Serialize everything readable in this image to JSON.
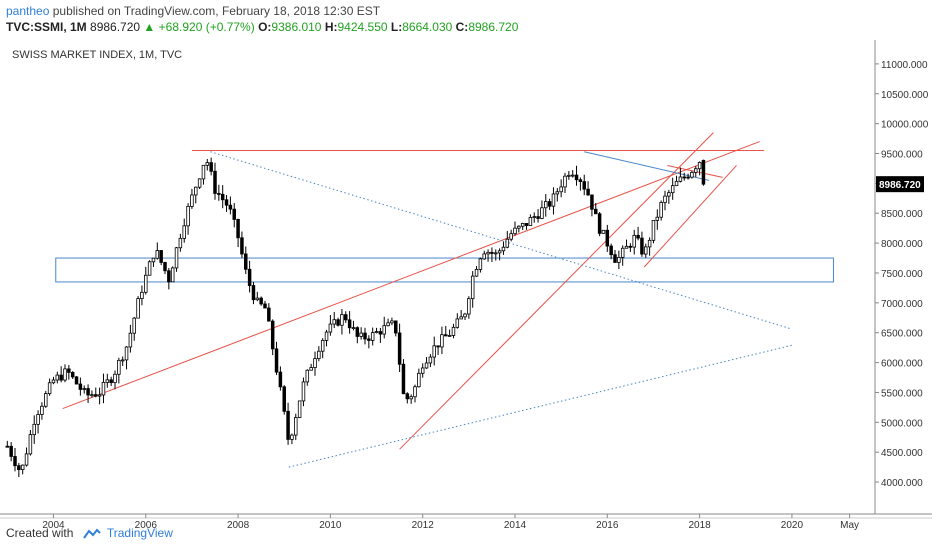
{
  "header": {
    "author": "pantheo",
    "published_text": "published on TradingView.com, February 18, 2018 12:30 EST",
    "symbol": "TVC:SSMI, 1M",
    "last": "8986.720",
    "change": "+68.920 (+0.77%)",
    "o_label": "O:",
    "o_value": "9386.010",
    "h_label": "H:",
    "h_value": "9424.550",
    "l_label": "L:",
    "l_value": "8664.030",
    "c_label": "C:",
    "c_value": "8986.720"
  },
  "footer": {
    "created_with": "Created with",
    "brand": "TradingView"
  },
  "colors": {
    "up": "#ffffff",
    "down": "#000000",
    "trend_red": "#e8534a",
    "trend_blue": "#4a86c8",
    "price_tag": "#000000"
  },
  "chart_data": {
    "type": "candlestick",
    "title": "SWISS MARKET INDEX, 1M, TVC",
    "last_price_label": "8986.720",
    "last_price": 8986.72,
    "y_ticks": [
      "4000.000",
      "4500.000",
      "5000.000",
      "5500.000",
      "6000.000",
      "6500.000",
      "7000.000",
      "7500.000",
      "8000.000",
      "8500.000",
      "9000.000",
      "9500.000",
      "10000.000",
      "10500.000",
      "11000.000"
    ],
    "y_tick_values": [
      4000,
      4500,
      5000,
      5500,
      6000,
      6500,
      7000,
      7500,
      8000,
      8500,
      9000,
      9500,
      10000,
      10500,
      11000
    ],
    "ylim": [
      3750,
      11400
    ],
    "x_ticks": [
      "2004",
      "2006",
      "2008",
      "2010",
      "2012",
      "2014",
      "2016",
      "2018",
      "2020",
      "May"
    ],
    "x_tick_values": [
      2004,
      2006,
      2008,
      2010,
      2012,
      2014,
      2016,
      2018,
      2020,
      2021.25
    ],
    "xlim": [
      2002.95,
      2021.8
    ],
    "close_path": [
      [
        2003.0,
        4600
      ],
      [
        2003.3,
        4150
      ],
      [
        2003.6,
        5100
      ],
      [
        2004.0,
        5700
      ],
      [
        2004.3,
        5850
      ],
      [
        2004.7,
        5450
      ],
      [
        2005.0,
        5500
      ],
      [
        2005.3,
        5800
      ],
      [
        2005.6,
        6300
      ],
      [
        2005.9,
        7200
      ],
      [
        2006.2,
        7900
      ],
      [
        2006.5,
        7400
      ],
      [
        2006.8,
        8300
      ],
      [
        2007.1,
        9000
      ],
      [
        2007.3,
        9450
      ],
      [
        2007.5,
        8900
      ],
      [
        2007.8,
        8600
      ],
      [
        2008.0,
        8100
      ],
      [
        2008.2,
        7400
      ],
      [
        2008.4,
        7000
      ],
      [
        2008.6,
        6900
      ],
      [
        2008.9,
        5600
      ],
      [
        2009.1,
        4650
      ],
      [
        2009.4,
        5600
      ],
      [
        2009.7,
        6200
      ],
      [
        2009.9,
        6500
      ],
      [
        2010.1,
        6650
      ],
      [
        2010.3,
        6800
      ],
      [
        2010.6,
        6400
      ],
      [
        2010.9,
        6450
      ],
      [
        2011.1,
        6550
      ],
      [
        2011.4,
        6650
      ],
      [
        2011.6,
        5350
      ],
      [
        2011.8,
        5500
      ],
      [
        2012.0,
        6000
      ],
      [
        2012.3,
        6300
      ],
      [
        2012.6,
        6500
      ],
      [
        2012.9,
        6800
      ],
      [
        2013.1,
        7500
      ],
      [
        2013.3,
        7900
      ],
      [
        2013.6,
        7800
      ],
      [
        2013.9,
        8150
      ],
      [
        2014.2,
        8300
      ],
      [
        2014.5,
        8500
      ],
      [
        2014.8,
        8700
      ],
      [
        2015.0,
        9000
      ],
      [
        2015.2,
        9250
      ],
      [
        2015.4,
        9100
      ],
      [
        2015.6,
        8800
      ],
      [
        2015.8,
        8300
      ],
      [
        2016.0,
        8000
      ],
      [
        2016.2,
        7700
      ],
      [
        2016.4,
        7900
      ],
      [
        2016.6,
        8100
      ],
      [
        2016.8,
        7800
      ],
      [
        2017.0,
        8300
      ],
      [
        2017.2,
        8700
      ],
      [
        2017.5,
        9000
      ],
      [
        2017.8,
        9200
      ],
      [
        2018.0,
        9380
      ],
      [
        2018.1,
        8986.72
      ]
    ],
    "annotations": {
      "horizontal_resistance": 9550,
      "support_box": [
        7350,
        7750
      ],
      "red_trendlines": [
        {
          "from": [
            2004.2,
            5230
          ],
          "to": [
            2019.3,
            9700
          ]
        },
        {
          "from": [
            2011.5,
            4550
          ],
          "to": [
            2018.3,
            9850
          ]
        },
        {
          "from": [
            2016.8,
            7600
          ],
          "to": [
            2018.8,
            9300
          ]
        },
        {
          "from": [
            2017.3,
            9300
          ],
          "to": [
            2018.5,
            9100
          ]
        }
      ],
      "blue_lines": [
        {
          "from": [
            2007.4,
            9530
          ],
          "to": [
            2020.0,
            6560
          ],
          "dotted": true
        },
        {
          "from": [
            2009.1,
            4250
          ],
          "to": [
            2020.0,
            6290
          ],
          "dotted": true
        },
        {
          "from": [
            2015.5,
            9530
          ],
          "to": [
            2018.2,
            9050
          ],
          "dotted": false
        }
      ]
    }
  }
}
